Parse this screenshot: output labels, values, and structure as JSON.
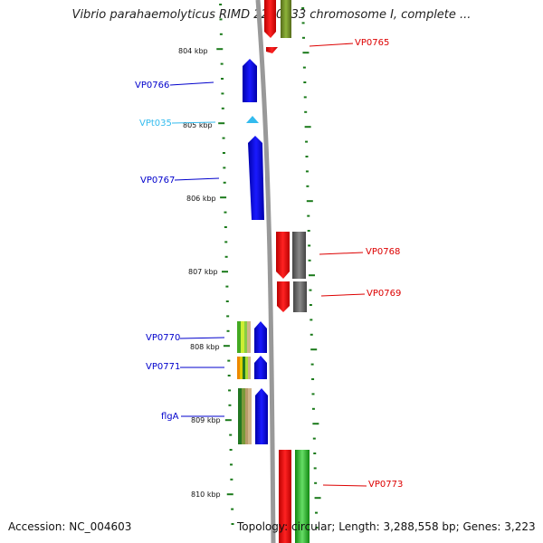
{
  "title": "Vibrio parahaemolyticus RIMD 2210633 chromosome I, complete ...",
  "accession": "Accession: NC_004603",
  "footer": "Topology: circular; Length: 3,288,558 bp; Genes: 3,223",
  "scale_labels": [
    "804 kbp",
    "805 kbp",
    "806 kbp",
    "807 kbp",
    "808 kbp",
    "809 kbp",
    "810 kbp"
  ],
  "genes": [
    {
      "label": "VP0765",
      "color": "#dd0000"
    },
    {
      "label": "VP0766",
      "color": "#0000cc"
    },
    {
      "label": "VPt035",
      "color": "#33bbee"
    },
    {
      "label": "VP0767",
      "color": "#0000cc"
    },
    {
      "label": "VP0768",
      "color": "#dd0000"
    },
    {
      "label": "VP0769",
      "color": "#dd0000"
    },
    {
      "label": "VP0770",
      "color": "#0000cc"
    },
    {
      "label": "VP0771",
      "color": "#0000cc"
    },
    {
      "label": "flgA",
      "color": "#0000cc"
    },
    {
      "label": "VP0773",
      "color": "#dd0000"
    }
  ],
  "colors": {
    "forward_feature": "#0000ee",
    "reverse_feature": "#ee0000",
    "cog_gray": "#666666",
    "cog_olive": "#6b8e23",
    "cog_green": "#33aa33",
    "backbone": "#999999",
    "tick": "#1a7a1a"
  }
}
